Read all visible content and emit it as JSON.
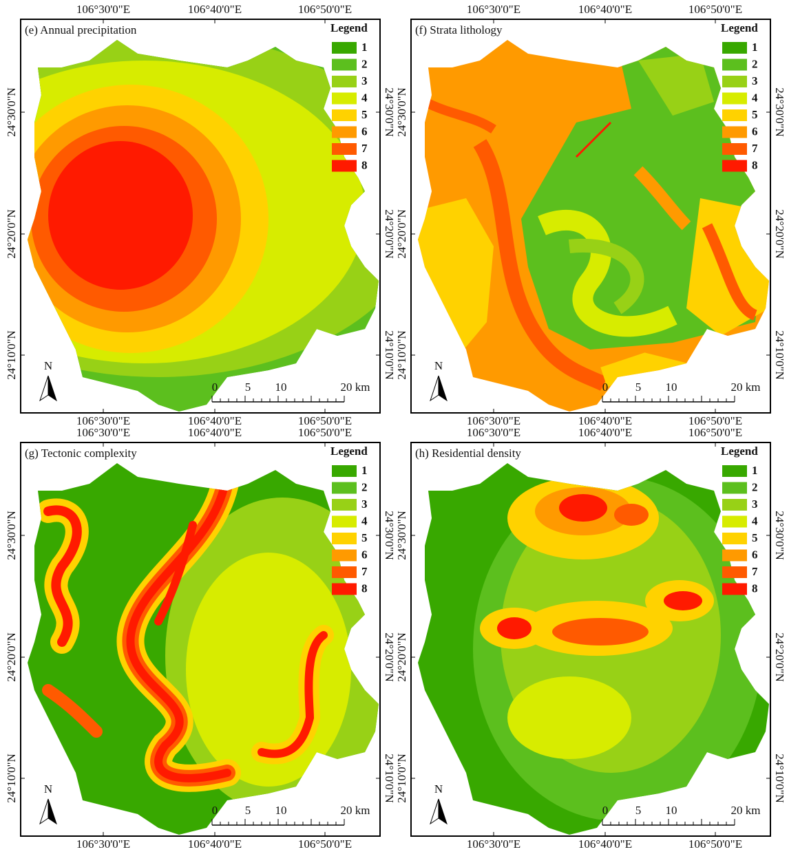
{
  "legend_colors": [
    "#38a800",
    "#5cbf1e",
    "#98d116",
    "#d7ec00",
    "#ffd200",
    "#ff9a00",
    "#ff5a00",
    "#ff1a00"
  ],
  "panels": [
    {
      "title": "(e) Annual precipitation",
      "legend_title": "Legend",
      "legend_classes": [
        1,
        2,
        3,
        4,
        5,
        6,
        7,
        8
      ],
      "top_labels": [
        "106°30'0\"E",
        "106°40'0\"E",
        "106°50'0\"E"
      ],
      "bottom_labels": [
        "106°30'0\"E",
        "106°40'0\"E",
        "106°50'0\"E"
      ],
      "left_labels": [
        "24°30'0\"N",
        "24°20'0\"N",
        "24°10'0\"N"
      ],
      "right_labels": [
        "24°30'0\"N",
        "24°20'0\"N",
        "24°10'0\"N"
      ],
      "scale_labels": [
        "0",
        "5",
        "10",
        "20 km"
      ],
      "north": "N"
    },
    {
      "title": "(f) Strata lithology",
      "legend_title": "Legend",
      "legend_classes": [
        1,
        2,
        3,
        4,
        5,
        6,
        7,
        8
      ],
      "top_labels": [
        "106°30'0\"E",
        "106°40'0\"E",
        "106°50'0\"E"
      ],
      "bottom_labels": [
        "106°30'0\"E",
        "106°40'0\"E",
        "106°50'0\"E"
      ],
      "left_labels": [
        "24°30'0\"N",
        "24°20'0\"N",
        "24°10'0\"N"
      ],
      "right_labels": [
        "24°30'0\"N",
        "24°20'0\"N",
        "24°10'0\"N"
      ],
      "scale_labels": [
        "0",
        "5",
        "10",
        "20 km"
      ],
      "north": "N"
    },
    {
      "title": "(g) Tectonic complexity",
      "legend_title": "Legend",
      "legend_classes": [
        1,
        2,
        3,
        4,
        5,
        6,
        7,
        8
      ],
      "top_labels": [
        "106°30'0\"E",
        "106°40'0\"E",
        "106°50'0\"E"
      ],
      "bottom_labels": [
        "106°30'0\"E",
        "106°40'0\"E",
        "106°50'0\"E"
      ],
      "left_labels": [
        "24°30'0\"N",
        "24°20'0\"N",
        "24°10'0\"N"
      ],
      "right_labels": [
        "24°30'0\"N",
        "24°20'0\"N",
        "24°10'0\"N"
      ],
      "scale_labels": [
        "0",
        "5",
        "10",
        "20 km"
      ],
      "north": "N"
    },
    {
      "title": "(h) Residential density",
      "legend_title": "Legend",
      "legend_classes": [
        1,
        2,
        3,
        4,
        5,
        6,
        7,
        8
      ],
      "top_labels": [
        "106°30'0\"E",
        "106°40'0\"E",
        "106°50'0\"E"
      ],
      "bottom_labels": [
        "106°30'0\"E",
        "106°40'0\"E",
        "106°50'0\"E"
      ],
      "left_labels": [
        "24°30'0\"N",
        "24°20'0\"N",
        "24°10'0\"N"
      ],
      "right_labels": [
        "24°30'0\"N",
        "24°20'0\"N",
        "24°10'0\"N"
      ],
      "scale_labels": [
        "0",
        "5",
        "10",
        "20 km"
      ],
      "north": "N"
    }
  ]
}
